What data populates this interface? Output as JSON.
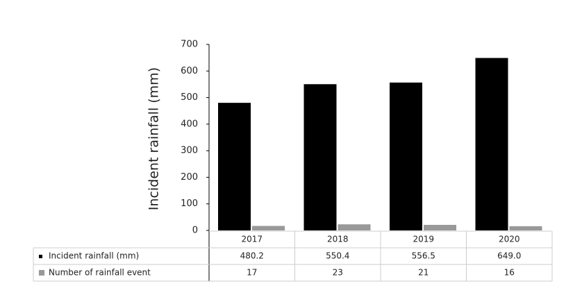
{
  "chart_data": {
    "type": "bar",
    "y_label": "Incident rainfall (mm)",
    "categories": [
      "2017",
      "2018",
      "2019",
      "2020"
    ],
    "series": [
      {
        "name": "Incident rainfall (mm)",
        "color": "#000000",
        "values": [
          480.2,
          550.4,
          556.5,
          649.0
        ],
        "value_labels": [
          "480.2",
          "550.4",
          "556.5",
          "649.0"
        ]
      },
      {
        "name": "Number of rainfall event",
        "color": "#999999",
        "values": [
          17,
          23,
          21,
          16
        ]
      }
    ],
    "ylim": [
      0,
      700
    ],
    "yticks": [
      0,
      100,
      200,
      300,
      400,
      500,
      600,
      700
    ]
  }
}
